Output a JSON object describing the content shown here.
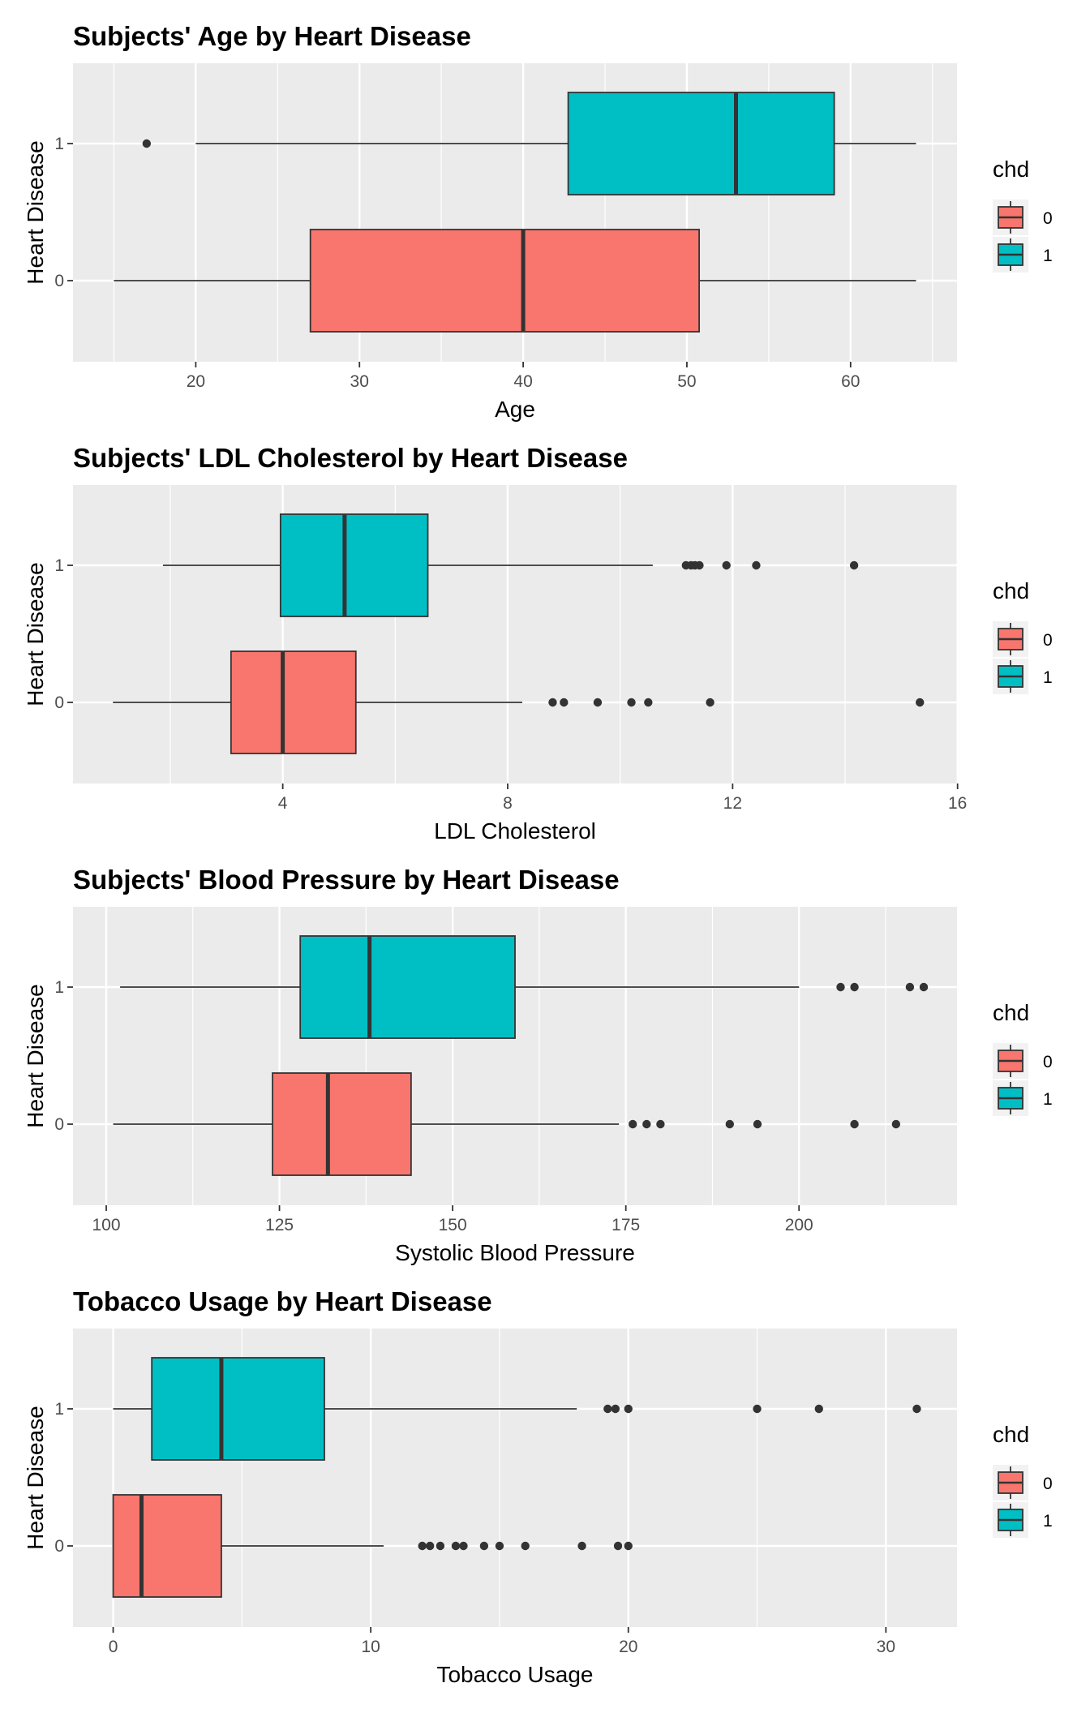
{
  "chart_data": [
    {
      "type": "boxplot",
      "title": "Subjects' Age by Heart Disease",
      "xlabel": "Age",
      "ylabel": "Heart Disease",
      "xlim": [
        12.5,
        66.5
      ],
      "xticks": [
        20,
        30,
        40,
        50,
        60
      ],
      "xtick_labels": [
        "20",
        "30",
        "40",
        "50",
        "60"
      ],
      "categories": [
        "1",
        "0"
      ],
      "legend": {
        "title": "chd",
        "placement": "right",
        "items": [
          {
            "label": "0",
            "color": "#F8766D"
          },
          {
            "label": "1",
            "color": "#00BFC4"
          }
        ]
      },
      "series": [
        {
          "name": "1",
          "color": "#00BFC4",
          "whisker_low": 20,
          "q1": 42.75,
          "median": 53,
          "q3": 59,
          "whisker_high": 64,
          "outliers": [
            17
          ]
        },
        {
          "name": "0",
          "color": "#F8766D",
          "whisker_low": 15,
          "q1": 27,
          "median": 40,
          "q3": 50.75,
          "whisker_high": 64,
          "outliers": []
        }
      ]
    },
    {
      "type": "boxplot",
      "title": "Subjects' LDL Cholesterol by Heart Disease",
      "xlabel": "LDL Cholesterol",
      "ylabel": "Heart Disease",
      "xlim": [
        0.27,
        15.99
      ],
      "xticks": [
        4,
        8,
        12,
        16
      ],
      "xtick_labels": [
        "4",
        "8",
        "12",
        "16"
      ],
      "categories": [
        "1",
        "0"
      ],
      "legend": {
        "title": "chd",
        "placement": "right",
        "items": [
          {
            "label": "0",
            "color": "#F8766D"
          },
          {
            "label": "1",
            "color": "#00BFC4"
          }
        ]
      },
      "series": [
        {
          "name": "1",
          "color": "#00BFC4",
          "whisker_low": 1.87,
          "q1": 3.96,
          "median": 5.1,
          "q3": 6.58,
          "whisker_high": 10.58,
          "outliers": [
            11.17,
            11.26,
            11.33,
            11.41,
            11.89,
            12.42,
            14.16
          ]
        },
        {
          "name": "0",
          "color": "#F8766D",
          "whisker_low": 0.98,
          "q1": 3.08,
          "median": 4.0,
          "q3": 5.3,
          "whisker_high": 8.26,
          "outliers": [
            8.8,
            9.0,
            9.6,
            10.2,
            10.5,
            11.6,
            15.33
          ]
        }
      ]
    },
    {
      "type": "boxplot",
      "title": "Subjects' Blood Pressure by Heart Disease",
      "xlabel": "Systolic Blood Pressure",
      "ylabel": "Heart Disease",
      "xlim": [
        95.2,
        222.8
      ],
      "xticks": [
        100,
        125,
        150,
        175,
        200
      ],
      "xtick_labels": [
        "100",
        "125",
        "150",
        "175",
        "200"
      ],
      "categories": [
        "1",
        "0"
      ],
      "legend": {
        "title": "chd",
        "placement": "right",
        "items": [
          {
            "label": "0",
            "color": "#F8766D"
          },
          {
            "label": "1",
            "color": "#00BFC4"
          }
        ]
      },
      "series": [
        {
          "name": "1",
          "color": "#00BFC4",
          "whisker_low": 102,
          "q1": 128,
          "median": 138,
          "q3": 159,
          "whisker_high": 200,
          "outliers": [
            206,
            208,
            216,
            218
          ]
        },
        {
          "name": "0",
          "color": "#F8766D",
          "whisker_low": 101,
          "q1": 124,
          "median": 132,
          "q3": 144,
          "whisker_high": 174,
          "outliers": [
            176,
            178,
            180,
            190,
            194,
            208,
            214
          ]
        }
      ]
    },
    {
      "type": "boxplot",
      "title": "Tobacco Usage by Heart Disease",
      "xlabel": "Tobacco Usage",
      "ylabel": "Heart Disease",
      "xlim": [
        -1.56,
        32.76
      ],
      "xticks": [
        0,
        10,
        20,
        30
      ],
      "xtick_labels": [
        "0",
        "10",
        "20",
        "30"
      ],
      "categories": [
        "1",
        "0"
      ],
      "legend": {
        "title": "chd",
        "placement": "right",
        "items": [
          {
            "label": "0",
            "color": "#F8766D"
          },
          {
            "label": "1",
            "color": "#00BFC4"
          }
        ]
      },
      "series": [
        {
          "name": "1",
          "color": "#00BFC4",
          "whisker_low": 0,
          "q1": 1.5,
          "median": 4.2,
          "q3": 8.2,
          "whisker_high": 18,
          "outliers": [
            19.2,
            19.5,
            20,
            25,
            27.4,
            31.2
          ]
        },
        {
          "name": "0",
          "color": "#F8766D",
          "whisker_low": 0,
          "q1": 0,
          "median": 1.1,
          "q3": 4.2,
          "whisker_high": 10.5,
          "outliers": [
            12,
            12.3,
            12.7,
            13.3,
            13.6,
            14.4,
            15.0,
            16.0,
            18.2,
            19.6,
            20.0
          ]
        }
      ]
    }
  ]
}
